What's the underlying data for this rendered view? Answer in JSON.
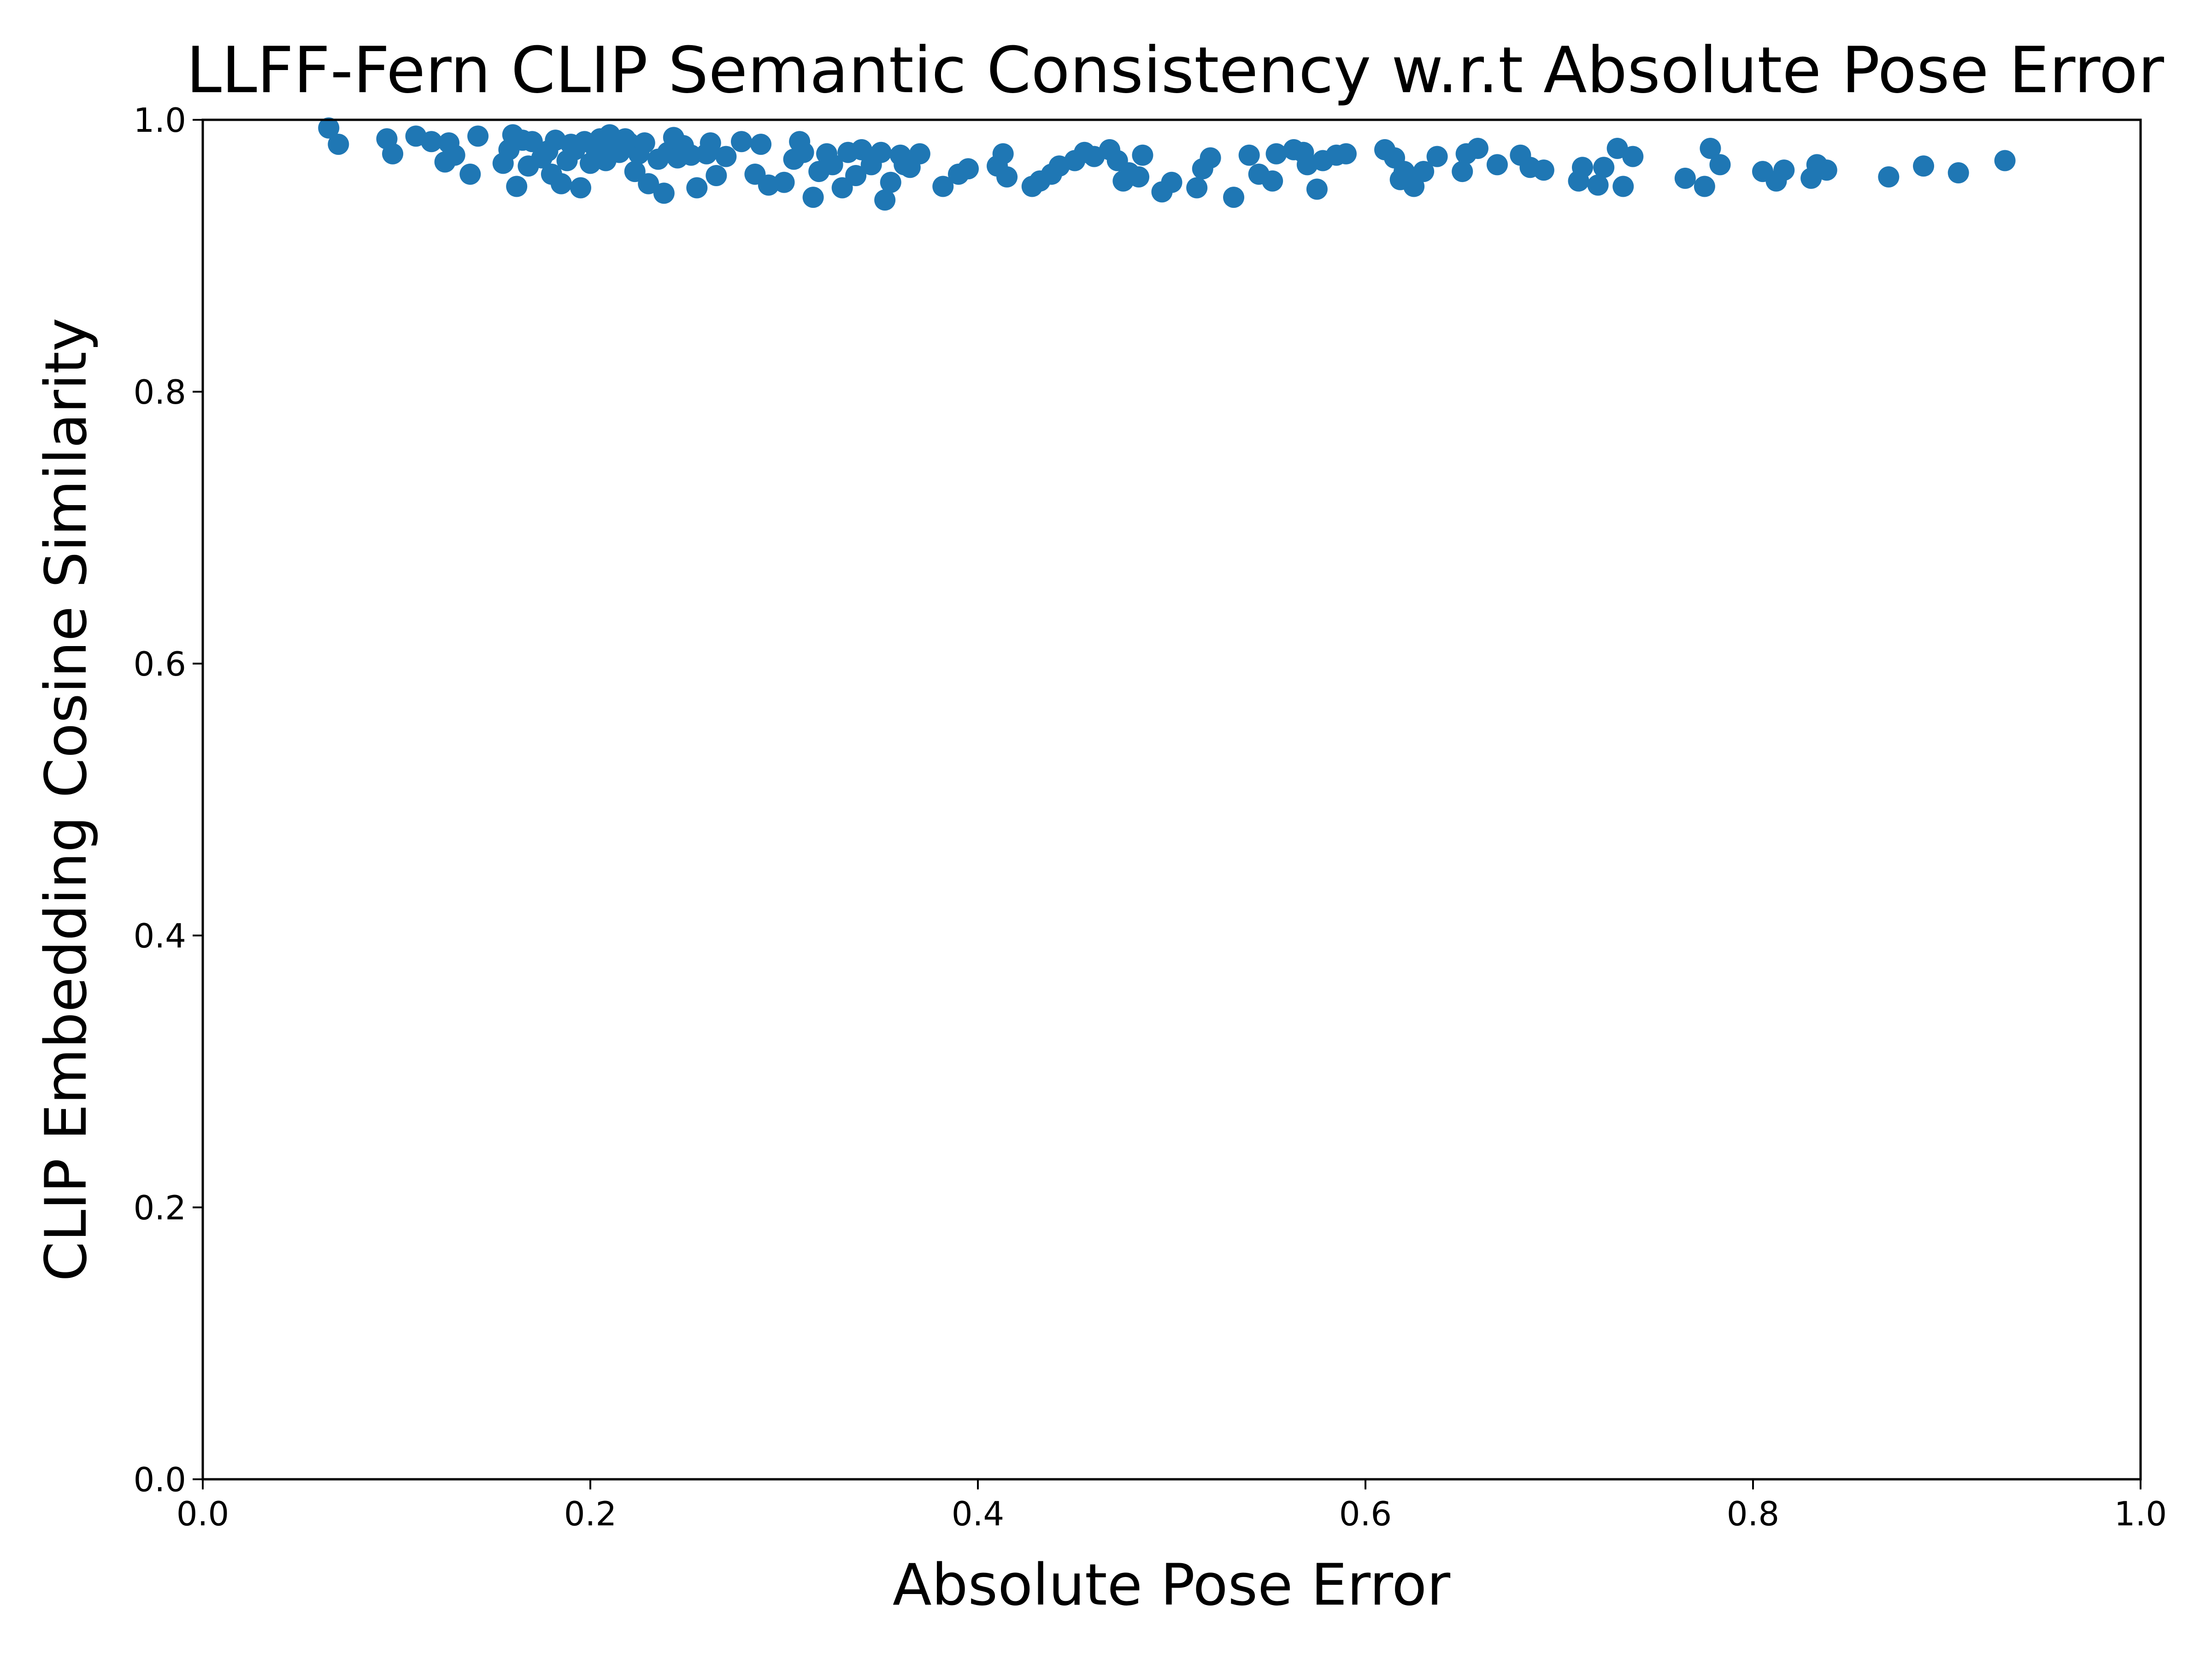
{
  "chart_data": {
    "type": "scatter",
    "title": "LLFF-Fern CLIP Semantic Consistency w.r.t Absolute Pose Error",
    "xlabel": "Absolute Pose Error",
    "ylabel": "CLIP Embedding Cosine Similarity",
    "xlim": [
      0.0,
      1.0
    ],
    "ylim": [
      0.0,
      1.0
    ],
    "xticks": [
      "0.0",
      "0.2",
      "0.4",
      "0.6",
      "0.8",
      "1.0"
    ],
    "yticks": [
      "0.0",
      "0.2",
      "0.4",
      "0.6",
      "0.8",
      "1.0"
    ],
    "grid": false,
    "legend": "none",
    "marker_color": "#1f77b4",
    "series": [
      {
        "x": [
          0.065,
          0.07,
          0.095,
          0.098,
          0.11,
          0.118,
          0.125,
          0.127,
          0.13,
          0.138,
          0.142,
          0.155,
          0.158,
          0.16,
          0.162,
          0.165,
          0.168,
          0.17,
          0.175,
          0.178,
          0.18,
          0.182,
          0.185,
          0.188,
          0.19,
          0.192,
          0.195,
          0.197,
          0.2,
          0.203,
          0.205,
          0.208,
          0.21,
          0.213,
          0.215,
          0.218,
          0.22,
          0.223,
          0.225,
          0.228,
          0.23,
          0.235,
          0.238,
          0.24,
          0.243,
          0.245,
          0.248,
          0.252,
          0.255,
          0.26,
          0.262,
          0.265,
          0.27,
          0.278,
          0.285,
          0.288,
          0.292,
          0.3,
          0.305,
          0.308,
          0.31,
          0.315,
          0.318,
          0.322,
          0.325,
          0.33,
          0.333,
          0.337,
          0.34,
          0.345,
          0.35,
          0.352,
          0.355,
          0.36,
          0.362,
          0.365,
          0.37,
          0.382,
          0.39,
          0.395,
          0.41,
          0.413,
          0.415,
          0.428,
          0.432,
          0.438,
          0.442,
          0.45,
          0.455,
          0.46,
          0.468,
          0.472,
          0.475,
          0.478,
          0.483,
          0.485,
          0.495,
          0.5,
          0.513,
          0.516,
          0.52,
          0.532,
          0.54,
          0.545,
          0.552,
          0.554,
          0.563,
          0.568,
          0.57,
          0.575,
          0.578,
          0.585,
          0.59,
          0.61,
          0.615,
          0.618,
          0.62,
          0.625,
          0.63,
          0.637,
          0.65,
          0.652,
          0.658,
          0.668,
          0.68,
          0.685,
          0.692,
          0.71,
          0.712,
          0.72,
          0.723,
          0.73,
          0.733,
          0.738,
          0.765,
          0.775,
          0.778,
          0.783,
          0.805,
          0.812,
          0.816,
          0.83,
          0.833,
          0.838,
          0.87,
          0.888,
          0.906,
          0.93
        ],
        "y": [
          0.994,
          0.982,
          0.986,
          0.975,
          0.988,
          0.984,
          0.969,
          0.983,
          0.974,
          0.96,
          0.988,
          0.968,
          0.978,
          0.989,
          0.951,
          0.985,
          0.966,
          0.984,
          0.972,
          0.977,
          0.96,
          0.985,
          0.953,
          0.97,
          0.982,
          0.978,
          0.95,
          0.984,
          0.968,
          0.978,
          0.986,
          0.97,
          0.989,
          0.981,
          0.976,
          0.986,
          0.983,
          0.962,
          0.975,
          0.983,
          0.953,
          0.971,
          0.946,
          0.976,
          0.987,
          0.972,
          0.981,
          0.974,
          0.95,
          0.975,
          0.983,
          0.959,
          0.973,
          0.984,
          0.96,
          0.982,
          0.952,
          0.954,
          0.971,
          0.984,
          0.976,
          0.943,
          0.962,
          0.975,
          0.967,
          0.95,
          0.976,
          0.959,
          0.978,
          0.967,
          0.976,
          0.941,
          0.954,
          0.974,
          0.967,
          0.965,
          0.975,
          0.951,
          0.96,
          0.964,
          0.966,
          0.975,
          0.958,
          0.951,
          0.955,
          0.96,
          0.966,
          0.97,
          0.976,
          0.973,
          0.978,
          0.97,
          0.955,
          0.961,
          0.958,
          0.974,
          0.947,
          0.954,
          0.95,
          0.964,
          0.972,
          0.943,
          0.974,
          0.96,
          0.955,
          0.975,
          0.978,
          0.976,
          0.967,
          0.949,
          0.97,
          0.974,
          0.975,
          0.978,
          0.972,
          0.956,
          0.962,
          0.951,
          0.962,
          0.973,
          0.962,
          0.975,
          0.979,
          0.967,
          0.974,
          0.965,
          0.963,
          0.955,
          0.965,
          0.952,
          0.965,
          0.979,
          0.951,
          0.973,
          0.957,
          0.951,
          0.979,
          0.967,
          0.962,
          0.955,
          0.963,
          0.957,
          0.967,
          0.963,
          0.958,
          0.966,
          0.961,
          0.97
        ]
      }
    ]
  }
}
